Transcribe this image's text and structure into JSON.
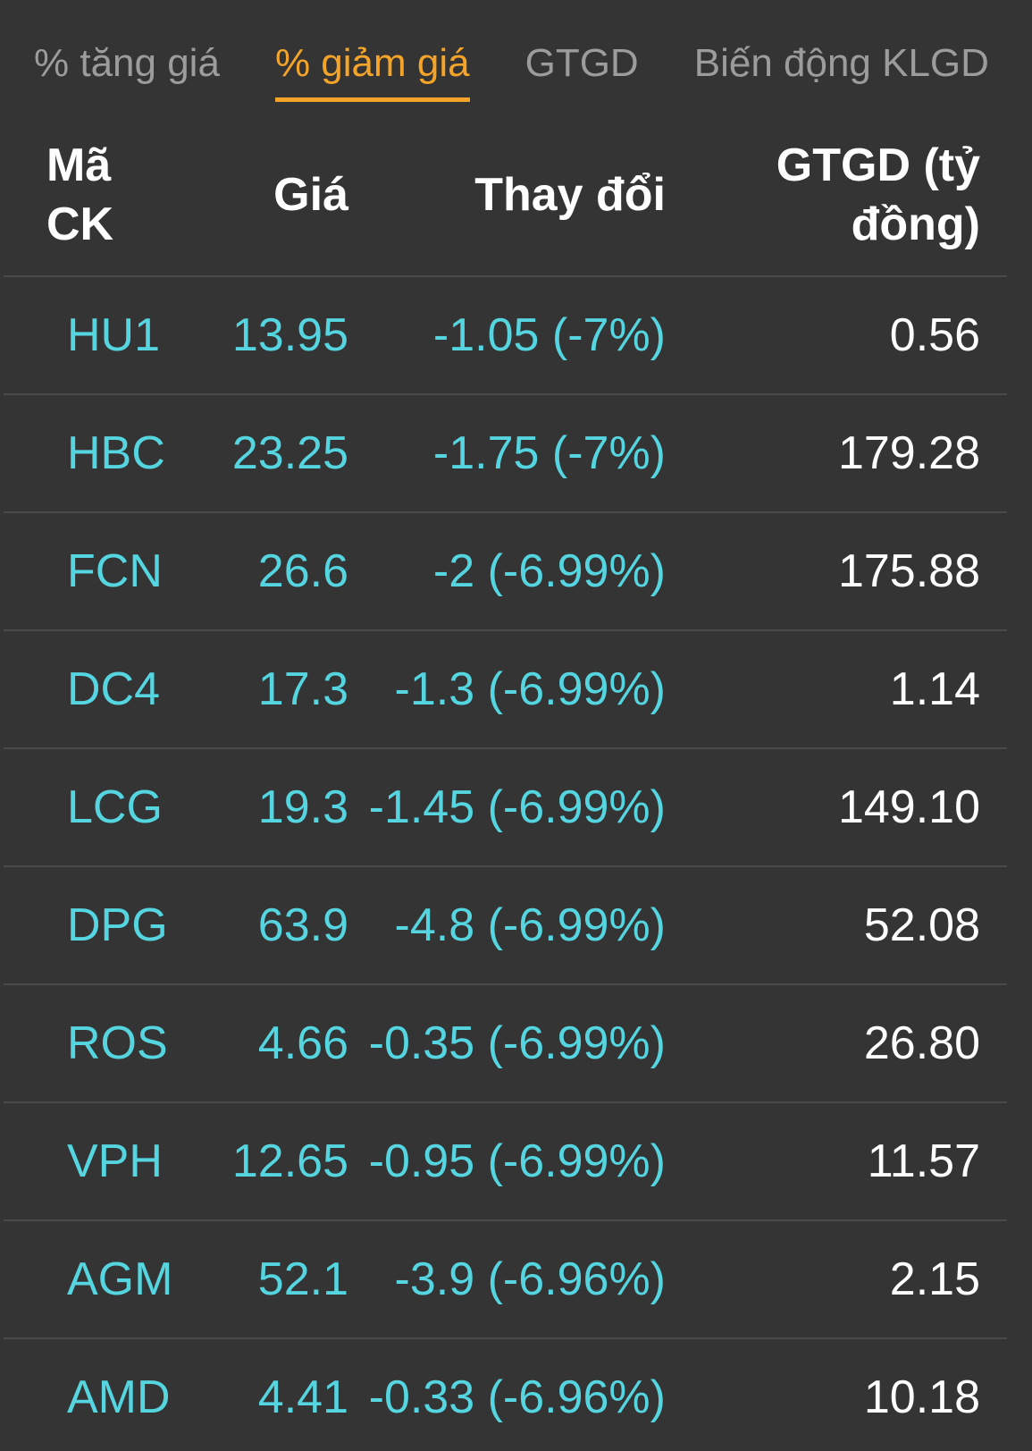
{
  "tabs": {
    "items": [
      {
        "label": "% tăng giá",
        "active": false
      },
      {
        "label": "% giảm giá",
        "active": true
      },
      {
        "label": "GTGD",
        "active": false
      },
      {
        "label": "Biến động KLGD",
        "active": false
      }
    ]
  },
  "table": {
    "headers": {
      "code": "Mã CK",
      "price": "Giá",
      "change": "Thay đổi",
      "value": "GTGD (tỷ đồng)"
    },
    "rows": [
      {
        "code": "HU1",
        "price": "13.95",
        "change": "-1.05 (-7%)",
        "value": "0.56"
      },
      {
        "code": "HBC",
        "price": "23.25",
        "change": "-1.75 (-7%)",
        "value": "179.28"
      },
      {
        "code": "FCN",
        "price": "26.6",
        "change": "-2 (-6.99%)",
        "value": "175.88"
      },
      {
        "code": "DC4",
        "price": "17.3",
        "change": "-1.3 (-6.99%)",
        "value": "1.14"
      },
      {
        "code": "LCG",
        "price": "19.3",
        "change": "-1.45 (-6.99%)",
        "value": "149.10"
      },
      {
        "code": "DPG",
        "price": "63.9",
        "change": "-4.8 (-6.99%)",
        "value": "52.08"
      },
      {
        "code": "ROS",
        "price": "4.66",
        "change": "-0.35 (-6.99%)",
        "value": "26.80"
      },
      {
        "code": "VPH",
        "price": "12.65",
        "change": "-0.95 (-6.99%)",
        "value": "11.57"
      },
      {
        "code": "AGM",
        "price": "52.1",
        "change": "-3.9 (-6.96%)",
        "value": "2.15"
      },
      {
        "code": "AMD",
        "price": "4.41",
        "change": "-0.33 (-6.96%)",
        "value": "10.18"
      }
    ]
  },
  "colors": {
    "background": "#343434",
    "accent_orange": "#f4a428",
    "cyan_text": "#54d5e0",
    "inactive_tab_gray": "#9c9c9c",
    "white_text": "#ffffff",
    "divider": "#4a4a4a"
  }
}
